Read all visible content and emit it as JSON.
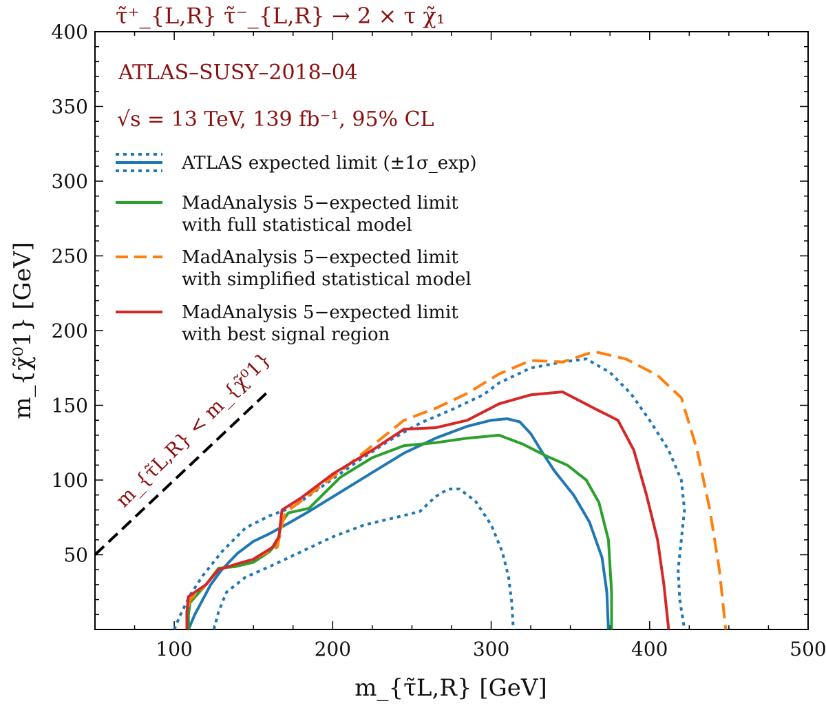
{
  "chart_data": {
    "type": "line",
    "process_label": "τ̃⁺_{L,R} τ̃⁻_{L,R} → 2 × τ χ̃₁",
    "annotation": {
      "analysis": "ATLAS–SUSY–2018–04",
      "conditions": "√s = 13 TeV, 139 fb⁻¹, 95% CL",
      "kinematic_boundary": "m_{τ̃L,R} < m_{χ̃⁰1}"
    },
    "xlabel": "m_{τ̃L,R} [GeV]",
    "ylabel": "m_{χ̃⁰1} [GeV]",
    "xlim": [
      50,
      500
    ],
    "ylim": [
      0,
      400
    ],
    "xticks": [
      100,
      200,
      300,
      400,
      500
    ],
    "yticks": [
      50,
      100,
      150,
      200,
      250,
      300,
      350,
      400
    ],
    "grid": false,
    "legend_position": "upper-left",
    "colors": {
      "atlas": "#1f77b4",
      "full": "#2ca02c",
      "simplified": "#ff7f0e",
      "best_sr": "#d62728",
      "annotation": "#8b0f0f",
      "diagonal": "#000000"
    },
    "legend": [
      {
        "key": "atlas",
        "line1": "ATLAS expected limit (±1σ_exp)",
        "line2": ""
      },
      {
        "key": "full",
        "line1": "MadAnalysis 5−expected limit",
        "line2": "with full statistical model"
      },
      {
        "key": "simplified",
        "line1": "MadAnalysis 5−expected limit",
        "line2": "with simplified statistical model"
      },
      {
        "key": "best_sr",
        "line1": "MadAnalysis 5−expected limit",
        "line2": "with best signal region"
      }
    ],
    "diagonal": {
      "x": [
        50,
        158
      ],
      "y": [
        50,
        158
      ]
    },
    "series": [
      {
        "key": "atlas_central",
        "style": "solid",
        "color_key": "atlas",
        "points": [
          [
            109,
            0
          ],
          [
            113,
            10
          ],
          [
            118,
            20
          ],
          [
            123,
            30
          ],
          [
            130,
            40
          ],
          [
            140,
            51
          ],
          [
            150,
            59
          ],
          [
            160,
            64
          ],
          [
            172,
            71
          ],
          [
            185,
            79
          ],
          [
            205,
            92
          ],
          [
            225,
            105
          ],
          [
            245,
            118
          ],
          [
            265,
            128
          ],
          [
            285,
            136
          ],
          [
            300,
            140
          ],
          [
            310,
            141
          ],
          [
            318,
            139
          ],
          [
            325,
            131
          ],
          [
            332,
            119
          ],
          [
            340,
            106
          ],
          [
            352,
            90
          ],
          [
            362,
            72
          ],
          [
            370,
            48
          ],
          [
            373,
            25
          ],
          [
            374,
            0
          ]
        ]
      },
      {
        "key": "atlas_plus",
        "style": "dotted",
        "color_key": "atlas",
        "points": [
          [
            100,
            0
          ],
          [
            104,
            10
          ],
          [
            110,
            23
          ],
          [
            118,
            36
          ],
          [
            130,
            52
          ],
          [
            145,
            68
          ],
          [
            160,
            76
          ],
          [
            175,
            82
          ],
          [
            195,
            97
          ],
          [
            215,
            112
          ],
          [
            235,
            126
          ],
          [
            255,
            138
          ],
          [
            275,
            147
          ],
          [
            295,
            157
          ],
          [
            305,
            165
          ],
          [
            325,
            175
          ],
          [
            345,
            179
          ],
          [
            360,
            181
          ],
          [
            375,
            172
          ],
          [
            388,
            158
          ],
          [
            400,
            140
          ],
          [
            412,
            120
          ],
          [
            420,
            100
          ],
          [
            422,
            80
          ],
          [
            420,
            60
          ],
          [
            418,
            40
          ],
          [
            419,
            20
          ],
          [
            422,
            0
          ]
        ]
      },
      {
        "key": "atlas_minus",
        "style": "dotted",
        "color_key": "atlas",
        "points": [
          [
            125,
            0
          ],
          [
            128,
            12
          ],
          [
            133,
            25
          ],
          [
            145,
            35
          ],
          [
            160,
            42
          ],
          [
            180,
            52
          ],
          [
            200,
            62
          ],
          [
            220,
            70
          ],
          [
            240,
            75
          ],
          [
            255,
            79
          ],
          [
            265,
            89
          ],
          [
            273,
            94
          ],
          [
            280,
            94
          ],
          [
            290,
            86
          ],
          [
            300,
            70
          ],
          [
            307,
            52
          ],
          [
            311,
            35
          ],
          [
            313,
            18
          ],
          [
            314,
            0
          ]
        ]
      },
      {
        "key": "ma5_full",
        "style": "solid",
        "color_key": "full",
        "points": [
          [
            109,
            0
          ],
          [
            109,
            10
          ],
          [
            110,
            18
          ],
          [
            120,
            30
          ],
          [
            128,
            41
          ],
          [
            138,
            42
          ],
          [
            150,
            45
          ],
          [
            160,
            52
          ],
          [
            165,
            58
          ],
          [
            168,
            72
          ],
          [
            172,
            78
          ],
          [
            185,
            81
          ],
          [
            205,
            102
          ],
          [
            225,
            115
          ],
          [
            245,
            123
          ],
          [
            265,
            125
          ],
          [
            285,
            128
          ],
          [
            305,
            130
          ],
          [
            320,
            124
          ],
          [
            335,
            116
          ],
          [
            348,
            110
          ],
          [
            360,
            100
          ],
          [
            368,
            85
          ],
          [
            374,
            60
          ],
          [
            376,
            25
          ],
          [
            376,
            0
          ]
        ]
      },
      {
        "key": "ma5_simplified",
        "style": "dashed",
        "color_key": "simplified",
        "points": [
          [
            108,
            0
          ],
          [
            108,
            12
          ],
          [
            110,
            20
          ],
          [
            120,
            30
          ],
          [
            128,
            40
          ],
          [
            140,
            44
          ],
          [
            150,
            47
          ],
          [
            165,
            55
          ],
          [
            168,
            70
          ],
          [
            170,
            78
          ],
          [
            185,
            90
          ],
          [
            205,
            106
          ],
          [
            225,
            123
          ],
          [
            245,
            140
          ],
          [
            265,
            148
          ],
          [
            285,
            158
          ],
          [
            305,
            171
          ],
          [
            325,
            180
          ],
          [
            345,
            179
          ],
          [
            365,
            186
          ],
          [
            385,
            181
          ],
          [
            405,
            170
          ],
          [
            420,
            155
          ],
          [
            430,
            120
          ],
          [
            438,
            80
          ],
          [
            444,
            40
          ],
          [
            448,
            0
          ]
        ]
      },
      {
        "key": "ma5_best_sr",
        "style": "solid",
        "color_key": "best_sr",
        "points": [
          [
            108,
            0
          ],
          [
            108,
            12
          ],
          [
            109,
            22
          ],
          [
            120,
            30
          ],
          [
            128,
            40
          ],
          [
            140,
            44
          ],
          [
            150,
            47
          ],
          [
            162,
            55
          ],
          [
            166,
            62
          ],
          [
            168,
            80
          ],
          [
            180,
            88
          ],
          [
            200,
            104
          ],
          [
            225,
            120
          ],
          [
            245,
            134
          ],
          [
            265,
            135
          ],
          [
            285,
            140
          ],
          [
            305,
            151
          ],
          [
            325,
            157
          ],
          [
            345,
            159
          ],
          [
            365,
            148
          ],
          [
            380,
            140
          ],
          [
            390,
            120
          ],
          [
            398,
            90
          ],
          [
            405,
            60
          ],
          [
            409,
            30
          ],
          [
            412,
            0
          ]
        ]
      }
    ]
  }
}
